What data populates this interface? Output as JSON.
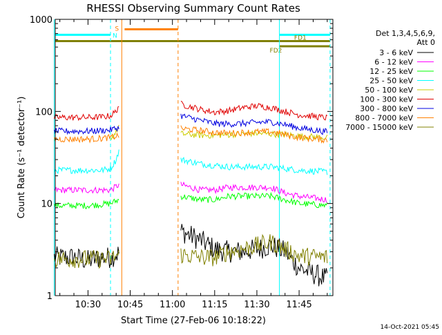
{
  "chart_data": {
    "type": "line",
    "title": "RHESSI Observing Summary Count Rates",
    "xlabel": "Start Time (27-Feb-06 10:18:22)",
    "ylabel": "Count Rate (s⁻¹ detector⁻¹)",
    "y_scale": "log",
    "ylim": [
      1,
      1000
    ],
    "xlim": [
      "10:18:22",
      "11:57:00"
    ],
    "x_ticks": [
      "10:30",
      "10:45",
      "11:00",
      "11:15",
      "11:30",
      "11:45"
    ],
    "y_ticks": [
      "1",
      "10",
      "100",
      "1000"
    ],
    "legend": {
      "placement": "right",
      "header": [
        "Det 1,3,4,5,6,9,",
        "Att 0"
      ],
      "entries": [
        {
          "label": "3 - 6 keV",
          "color": "#000000"
        },
        {
          "label": "6 - 12 keV",
          "color": "#ff00ff"
        },
        {
          "label": "12 - 25 keV",
          "color": "#00ff00"
        },
        {
          "label": "25 - 50 keV",
          "color": "#00ffff"
        },
        {
          "label": "50 - 100 keV",
          "color": "#cccc00"
        },
        {
          "label": "100 - 300 keV",
          "color": "#e00000"
        },
        {
          "label": "300 - 800 keV",
          "color": "#0000e0"
        },
        {
          "label": "800 - 7000 keV",
          "color": "#ff8000"
        },
        {
          "label": "7000 - 15000 keV",
          "color": "#808000"
        }
      ]
    },
    "flags": [
      {
        "label": "S",
        "color": "#ff8000",
        "start": "10:43",
        "end": "11:02",
        "level": 780
      },
      {
        "label": "N",
        "color": "#00ffff",
        "start": "10:18",
        "end": "10:38",
        "level": 680
      },
      {
        "label": "N",
        "color": "#00ffff",
        "start": "11:38",
        "end": "11:56",
        "level": 680
      },
      {
        "label": "FD1",
        "color": "#808000",
        "start": "10:18",
        "end": "11:56",
        "level": 580
      },
      {
        "label": "FD2",
        "color": "#808000",
        "start": "11:38",
        "end": "11:56",
        "level": 510
      }
    ],
    "vertical_lines": [
      {
        "time": "10:18",
        "color": "#00ffff",
        "style": "solid"
      },
      {
        "time": "10:38",
        "color": "#00ffff",
        "style": "dashed"
      },
      {
        "time": "10:42",
        "color": "#ff8000",
        "style": "solid"
      },
      {
        "time": "11:02",
        "color": "#ff8000",
        "style": "dashed"
      },
      {
        "time": "11:38",
        "color": "#00ffff",
        "style": "solid"
      },
      {
        "time": "11:56",
        "color": "#00ffff",
        "style": "dashed"
      }
    ],
    "data_gap": [
      "10:42",
      "11:02"
    ],
    "series": [
      {
        "name": "3 - 6 keV",
        "color": "#000000",
        "x": [
          "10:18",
          "10:25",
          "10:30",
          "10:35",
          "10:38",
          "10:41",
          "11:03",
          "11:10",
          "11:15",
          "11:20",
          "11:25",
          "11:30",
          "11:35",
          "11:40",
          "11:45",
          "11:55"
        ],
        "y": [
          2.6,
          2.6,
          2.4,
          2.6,
          2.6,
          2.9,
          5.0,
          4.0,
          3.2,
          3.0,
          3.0,
          3.2,
          3.5,
          3.0,
          2.0,
          1.5
        ]
      },
      {
        "name": "6 - 12 keV",
        "color": "#ff00ff",
        "x": [
          "10:18",
          "10:25",
          "10:30",
          "10:35",
          "10:38",
          "10:41",
          "11:03",
          "11:10",
          "11:15",
          "11:20",
          "11:25",
          "11:30",
          "11:35",
          "11:40",
          "11:45",
          "11:55"
        ],
        "y": [
          14,
          14,
          14,
          14,
          14,
          16,
          16,
          14,
          14,
          15,
          15,
          15,
          15,
          13,
          12,
          11
        ]
      },
      {
        "name": "12 - 25 keV",
        "color": "#00ff00",
        "x": [
          "10:18",
          "10:25",
          "10:30",
          "10:35",
          "10:38",
          "10:41",
          "11:03",
          "11:10",
          "11:15",
          "11:20",
          "11:25",
          "11:30",
          "11:35",
          "11:40",
          "11:45",
          "11:55"
        ],
        "y": [
          9.5,
          9.5,
          9.5,
          9.8,
          10,
          11,
          12,
          11,
          11,
          12,
          12,
          12,
          12,
          11,
          10,
          9.5
        ]
      },
      {
        "name": "25 - 50 keV",
        "color": "#00ffff",
        "x": [
          "10:18",
          "10:25",
          "10:30",
          "10:35",
          "10:38",
          "10:40",
          "10:41",
          "11:03",
          "11:10",
          "11:15",
          "11:20",
          "11:25",
          "11:30",
          "11:35",
          "11:40",
          "11:45",
          "11:55"
        ],
        "y": [
          23,
          23,
          23,
          23,
          24,
          30,
          38,
          30,
          27,
          26,
          25,
          25,
          25,
          25,
          24,
          23,
          22
        ]
      },
      {
        "name": "50 - 100 keV",
        "color": "#cccc00",
        "x": [
          "10:38",
          "10:40",
          "10:41",
          "11:03",
          "11:10",
          "11:15",
          "11:20",
          "11:25",
          "11:30",
          "11:35",
          "11:40",
          "11:45",
          "11:55"
        ],
        "y": [
          50,
          60,
          70,
          57,
          55,
          55,
          56,
          57,
          58,
          57,
          56,
          54,
          52
        ]
      },
      {
        "name": "100 - 300 keV",
        "color": "#e00000",
        "x": [
          "10:18",
          "10:25",
          "10:30",
          "10:35",
          "10:38",
          "10:40",
          "10:41",
          "11:03",
          "11:10",
          "11:15",
          "11:20",
          "11:25",
          "11:30",
          "11:35",
          "11:40",
          "11:45",
          "11:55"
        ],
        "y": [
          86,
          86,
          86,
          87,
          90,
          100,
          118,
          120,
          105,
          98,
          102,
          110,
          115,
          110,
          100,
          92,
          85
        ]
      },
      {
        "name": "300 - 800 keV",
        "color": "#0000e0",
        "x": [
          "10:18",
          "10:25",
          "10:30",
          "10:35",
          "10:38",
          "10:41",
          "11:03",
          "11:10",
          "11:15",
          "11:20",
          "11:25",
          "11:30",
          "11:35",
          "11:40",
          "11:45",
          "11:55"
        ],
        "y": [
          61,
          61,
          61,
          62,
          63,
          67,
          90,
          80,
          74,
          73,
          74,
          76,
          77,
          72,
          66,
          60
        ]
      },
      {
        "name": "800 - 7000 keV",
        "color": "#ff8000",
        "x": [
          "10:18",
          "10:25",
          "10:30",
          "10:35",
          "10:38",
          "10:41",
          "11:03",
          "11:10",
          "11:15",
          "11:20",
          "11:25",
          "11:30",
          "11:35",
          "11:40",
          "11:45",
          "11:55"
        ],
        "y": [
          50,
          50,
          50,
          51,
          52,
          55,
          65,
          62,
          59,
          58,
          59,
          60,
          60,
          56,
          52,
          49
        ]
      },
      {
        "name": "7000 - 15000 keV",
        "color": "#808000",
        "x": [
          "10:18",
          "10:25",
          "10:30",
          "10:35",
          "10:38",
          "10:41",
          "11:03",
          "11:10",
          "11:15",
          "11:20",
          "11:25",
          "11:30",
          "11:35",
          "11:40",
          "11:45",
          "11:55"
        ],
        "y": [
          2.5,
          2.5,
          2.5,
          2.5,
          2.5,
          2.8,
          2.8,
          2.6,
          2.6,
          3.0,
          3.2,
          3.5,
          3.8,
          3.2,
          2.7,
          2.6
        ]
      }
    ]
  },
  "footer_date": "14-Oct-2021 05:45"
}
